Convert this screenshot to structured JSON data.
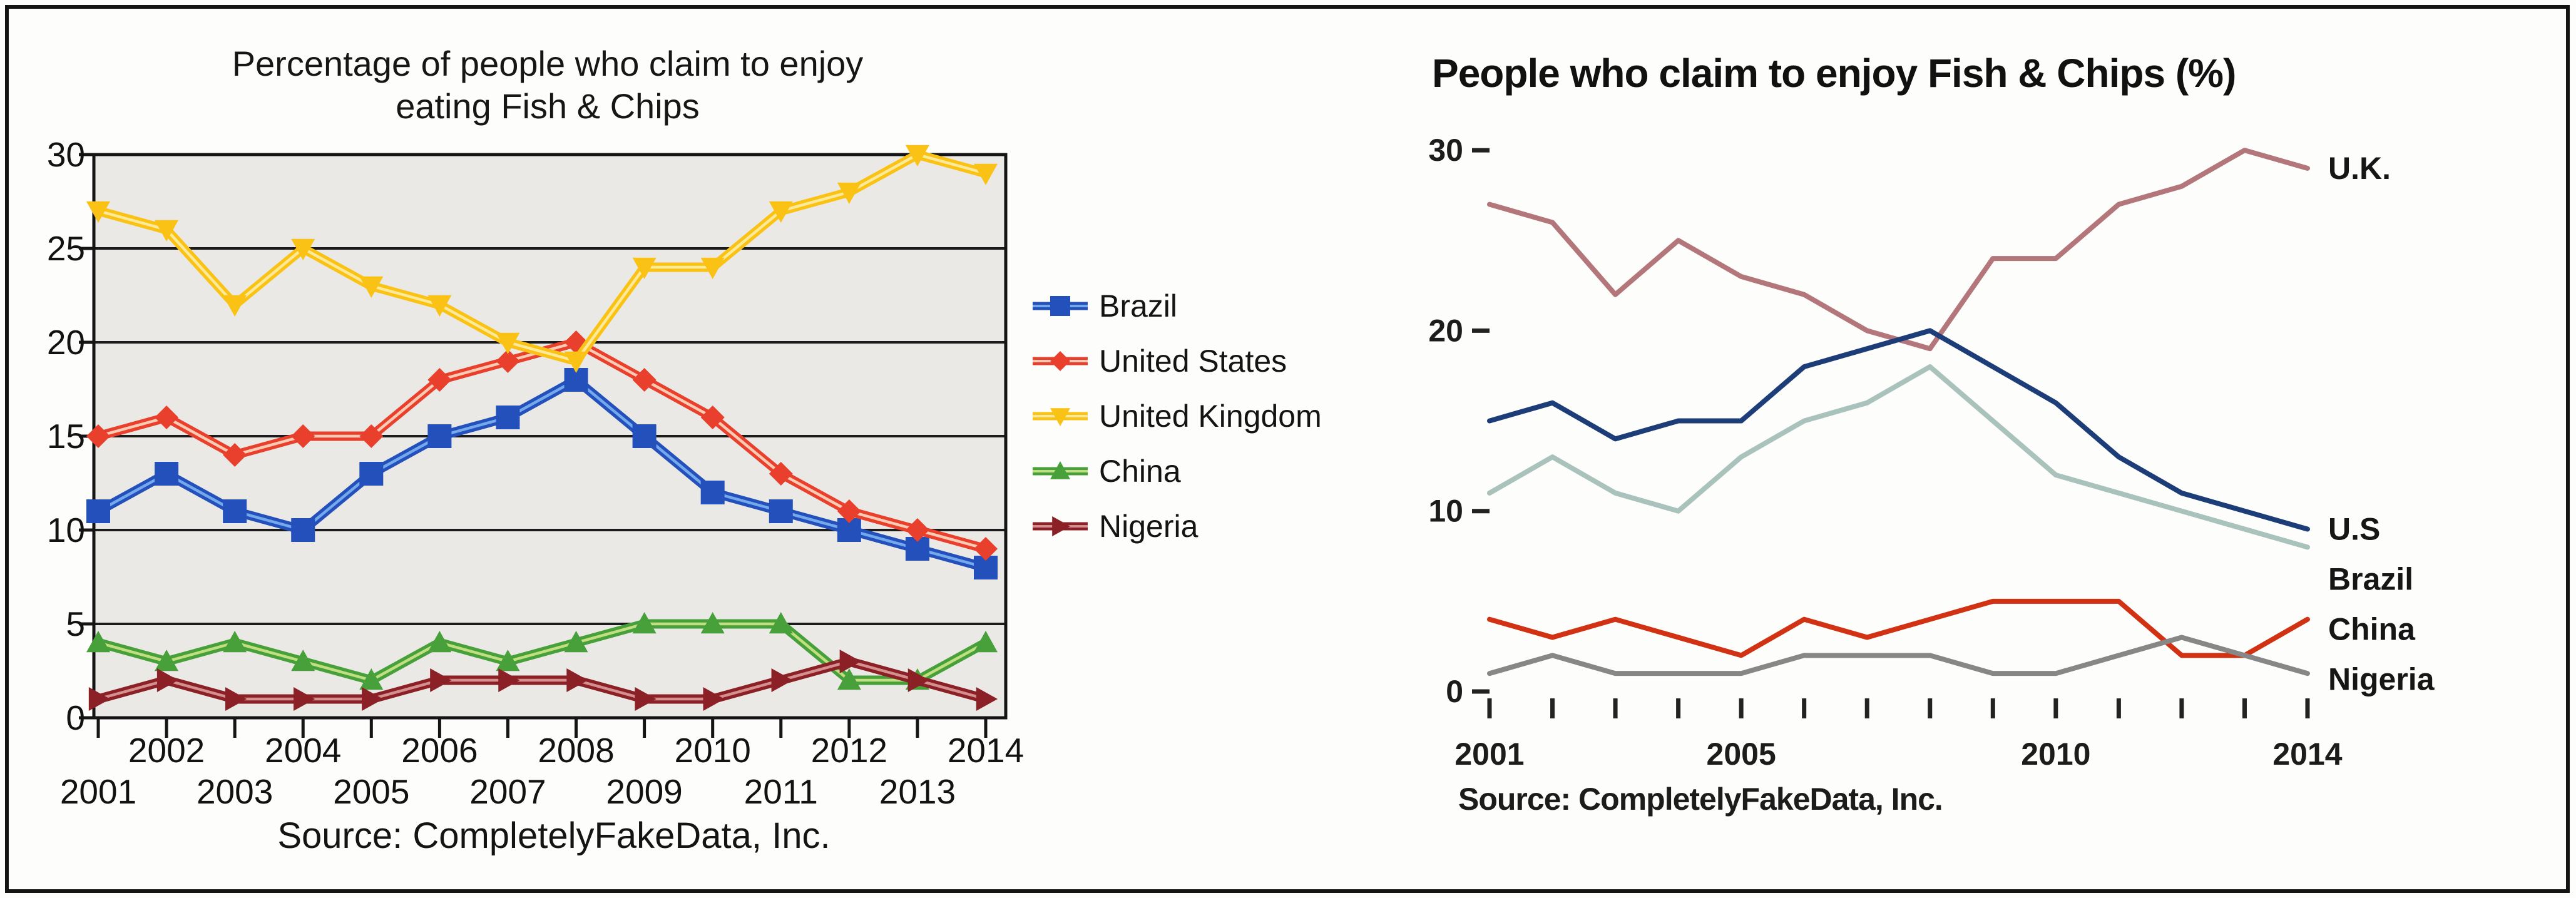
{
  "page": {
    "background": "#fdfdfb",
    "frame_color": "#141414"
  },
  "chart_data": [
    {
      "type": "line",
      "variant": "excel-style-original",
      "title": "Percentage of people who claim to enjoy eating Fish & Chips",
      "title_line1": "Percentage of people who claim to enjoy",
      "title_line2": "eating Fish & Chips",
      "source": "Source: CompletelyFakeData, Inc.",
      "x": [
        2001,
        2002,
        2003,
        2004,
        2005,
        2006,
        2007,
        2008,
        2009,
        2010,
        2011,
        2012,
        2013,
        2014
      ],
      "x_axis_label_rows": {
        "top": [
          "2002",
          "2004",
          "2006",
          "2008",
          "2010",
          "2012",
          "2014"
        ],
        "bottom": [
          "2001",
          "2003",
          "2005",
          "2007",
          "2009",
          "2011",
          "2013"
        ]
      },
      "ylim": [
        0,
        30
      ],
      "yticks": [
        0,
        5,
        10,
        15,
        20,
        25,
        30
      ],
      "grid": true,
      "plot_background": "#eae9e5",
      "grid_color": "#1b1b1b",
      "legend_position": "right",
      "series": [
        {
          "name": "Brazil",
          "color": "#2450bc",
          "highlight": "#7db2f2",
          "marker": "square",
          "values": [
            11,
            13,
            11,
            10,
            13,
            15,
            16,
            18,
            15,
            12,
            11,
            10,
            9,
            8
          ]
        },
        {
          "name": "United States",
          "color": "#e8402c",
          "highlight": "#ffd9c2",
          "marker": "diamond",
          "values": [
            15,
            16,
            14,
            15,
            15,
            18,
            19,
            20,
            18,
            16,
            13,
            11,
            10,
            9
          ]
        },
        {
          "name": "United Kingdom",
          "color": "#f9c215",
          "highlight": "#fdeea6",
          "marker": "triangle-down",
          "values": [
            27,
            26,
            22,
            25,
            23,
            22,
            20,
            19,
            24,
            24,
            27,
            28,
            30,
            29
          ]
        },
        {
          "name": "China",
          "color": "#47a03a",
          "highlight": "#cde68a",
          "marker": "triangle-up",
          "values": [
            4,
            3,
            4,
            3,
            2,
            4,
            3,
            4,
            5,
            5,
            5,
            2,
            2,
            4
          ]
        },
        {
          "name": "Nigeria",
          "color": "#8b2026",
          "highlight": "#dd9b9b",
          "marker": "triangle-right",
          "values": [
            1,
            2,
            1,
            1,
            1,
            2,
            2,
            2,
            1,
            1,
            2,
            3,
            2,
            1
          ]
        }
      ]
    },
    {
      "type": "line",
      "variant": "clean-redesign",
      "title": "People who claim to enjoy Fish & Chips (%)",
      "source": "Source: CompletelyFakeData, Inc.",
      "x": [
        2001,
        2002,
        2003,
        2004,
        2005,
        2006,
        2007,
        2008,
        2009,
        2010,
        2011,
        2012,
        2013,
        2014
      ],
      "x_labels": [
        "2001",
        "2005",
        "2010",
        "2014"
      ],
      "ylim": [
        0,
        30
      ],
      "yticks": [
        0,
        10,
        20,
        30
      ],
      "grid": false,
      "direct_labels": true,
      "series": [
        {
          "name": "U.K.",
          "color": "#b3767a",
          "values": [
            27,
            26,
            22,
            25,
            23,
            22,
            20,
            19,
            24,
            24,
            27,
            28,
            30,
            29
          ]
        },
        {
          "name": "U.S",
          "color": "#1d3d78",
          "values": [
            15,
            16,
            14,
            15,
            15,
            18,
            19,
            20,
            18,
            16,
            13,
            11,
            10,
            9
          ]
        },
        {
          "name": "Brazil",
          "color": "#a9c2bb",
          "values": [
            11,
            13,
            11,
            10,
            13,
            15,
            16,
            18,
            15,
            12,
            11,
            10,
            9,
            8
          ]
        },
        {
          "name": "China",
          "color": "#d13214",
          "values": [
            4,
            3,
            4,
            3,
            2,
            4,
            3,
            4,
            5,
            5,
            5,
            2,
            2,
            4
          ]
        },
        {
          "name": "Nigeria",
          "color": "#878787",
          "values": [
            1,
            2,
            1,
            1,
            1,
            2,
            2,
            2,
            1,
            1,
            2,
            3,
            2,
            1
          ]
        }
      ]
    }
  ]
}
